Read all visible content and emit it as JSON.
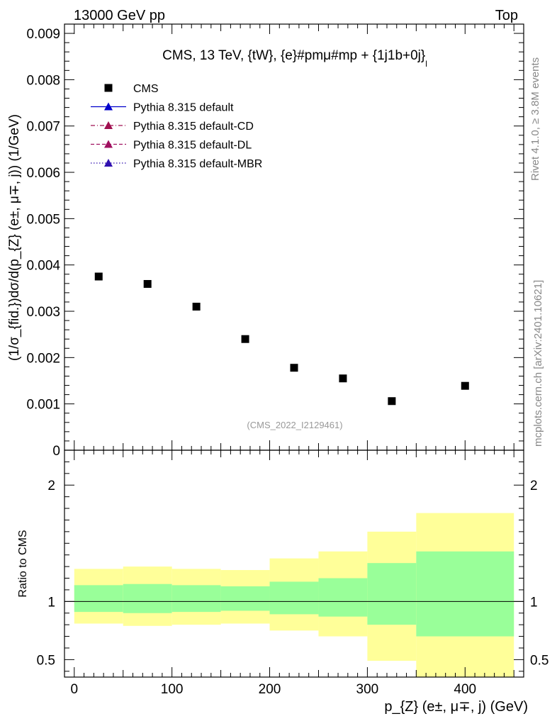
{
  "header": {
    "left": "13000 GeV pp",
    "right": "Top"
  },
  "side_text": {
    "rivet": "Rivet 4.1.0, ≥ 3.8M events",
    "mcplots": "mcplots.cern.ch [arXiv:2401.10621]"
  },
  "colors": {
    "data": "#000000",
    "default": "#0000cc",
    "cd": "#a01050",
    "dl": "#a01060",
    "mbr": "#3010b0",
    "band_inner": "#99ff99",
    "band_outer": "#ffff99"
  },
  "chart_data": [
    {
      "type": "scatter",
      "title": "CMS, 13 TeV, {tW}, {e}#pmμ#mp + {1j1b+0j}",
      "title_sub": "l",
      "watermark": "(CMS_2022_I2129461)",
      "ylabel": "(1/σ_{fid.})dσ/d(p_{Z} (e±, μ∓, j)) (1/GeV)",
      "ylim": [
        0,
        0.0092
      ],
      "yticks": [
        0,
        0.001,
        0.002,
        0.003,
        0.004,
        0.005,
        0.006,
        0.007,
        0.008,
        0.009
      ],
      "ytick_labels": [
        "0",
        "0.001",
        "0.002",
        "0.003",
        "0.004",
        "0.005",
        "0.006",
        "0.007",
        "0.008",
        "0.009"
      ],
      "xlim": [
        -10,
        460
      ],
      "legend": [
        {
          "label": "CMS",
          "style": "square"
        },
        {
          "label": "Pythia 8.315 default",
          "style": "solid"
        },
        {
          "label": "Pythia 8.315 default-CD",
          "style": "dashdot"
        },
        {
          "label": "Pythia 8.315 default-DL",
          "style": "dashed"
        },
        {
          "label": "Pythia 8.315 default-MBR",
          "style": "dotted"
        }
      ],
      "series": [
        {
          "name": "CMS",
          "x": [
            25,
            75,
            125,
            175,
            225,
            275,
            325,
            400
          ],
          "values": [
            0.00375,
            0.00359,
            0.0031,
            0.0024,
            0.00178,
            0.00155,
            0.00106,
            0.00139
          ]
        }
      ]
    },
    {
      "type": "area",
      "ylabel": "Ratio to CMS",
      "xlabel": "p_{Z} (e±, μ∓, j) (GeV)",
      "ylim": [
        0.35,
        2.3
      ],
      "yticks": [
        0.5,
        1,
        2
      ],
      "ytick_labels": [
        "0.5",
        "1",
        "2"
      ],
      "xlim": [
        -10,
        460
      ],
      "xticks": [
        0,
        100,
        200,
        300,
        400
      ],
      "xtick_labels": [
        "0",
        "100",
        "200",
        "300",
        "400"
      ],
      "bins": [
        [
          0,
          50
        ],
        [
          50,
          100
        ],
        [
          100,
          150
        ],
        [
          150,
          200
        ],
        [
          200,
          250
        ],
        [
          250,
          300
        ],
        [
          300,
          350
        ],
        [
          350,
          450
        ]
      ],
      "inner_band": {
        "low": [
          0.91,
          0.9,
          0.91,
          0.92,
          0.89,
          0.87,
          0.8,
          0.7
        ],
        "high": [
          1.14,
          1.15,
          1.14,
          1.13,
          1.17,
          1.2,
          1.33,
          1.43
        ]
      },
      "outer_band": {
        "low": [
          0.81,
          0.79,
          0.8,
          0.81,
          0.75,
          0.7,
          0.49,
          0.35
        ],
        "high": [
          1.28,
          1.3,
          1.28,
          1.27,
          1.37,
          1.43,
          1.6,
          1.76
        ]
      }
    }
  ]
}
